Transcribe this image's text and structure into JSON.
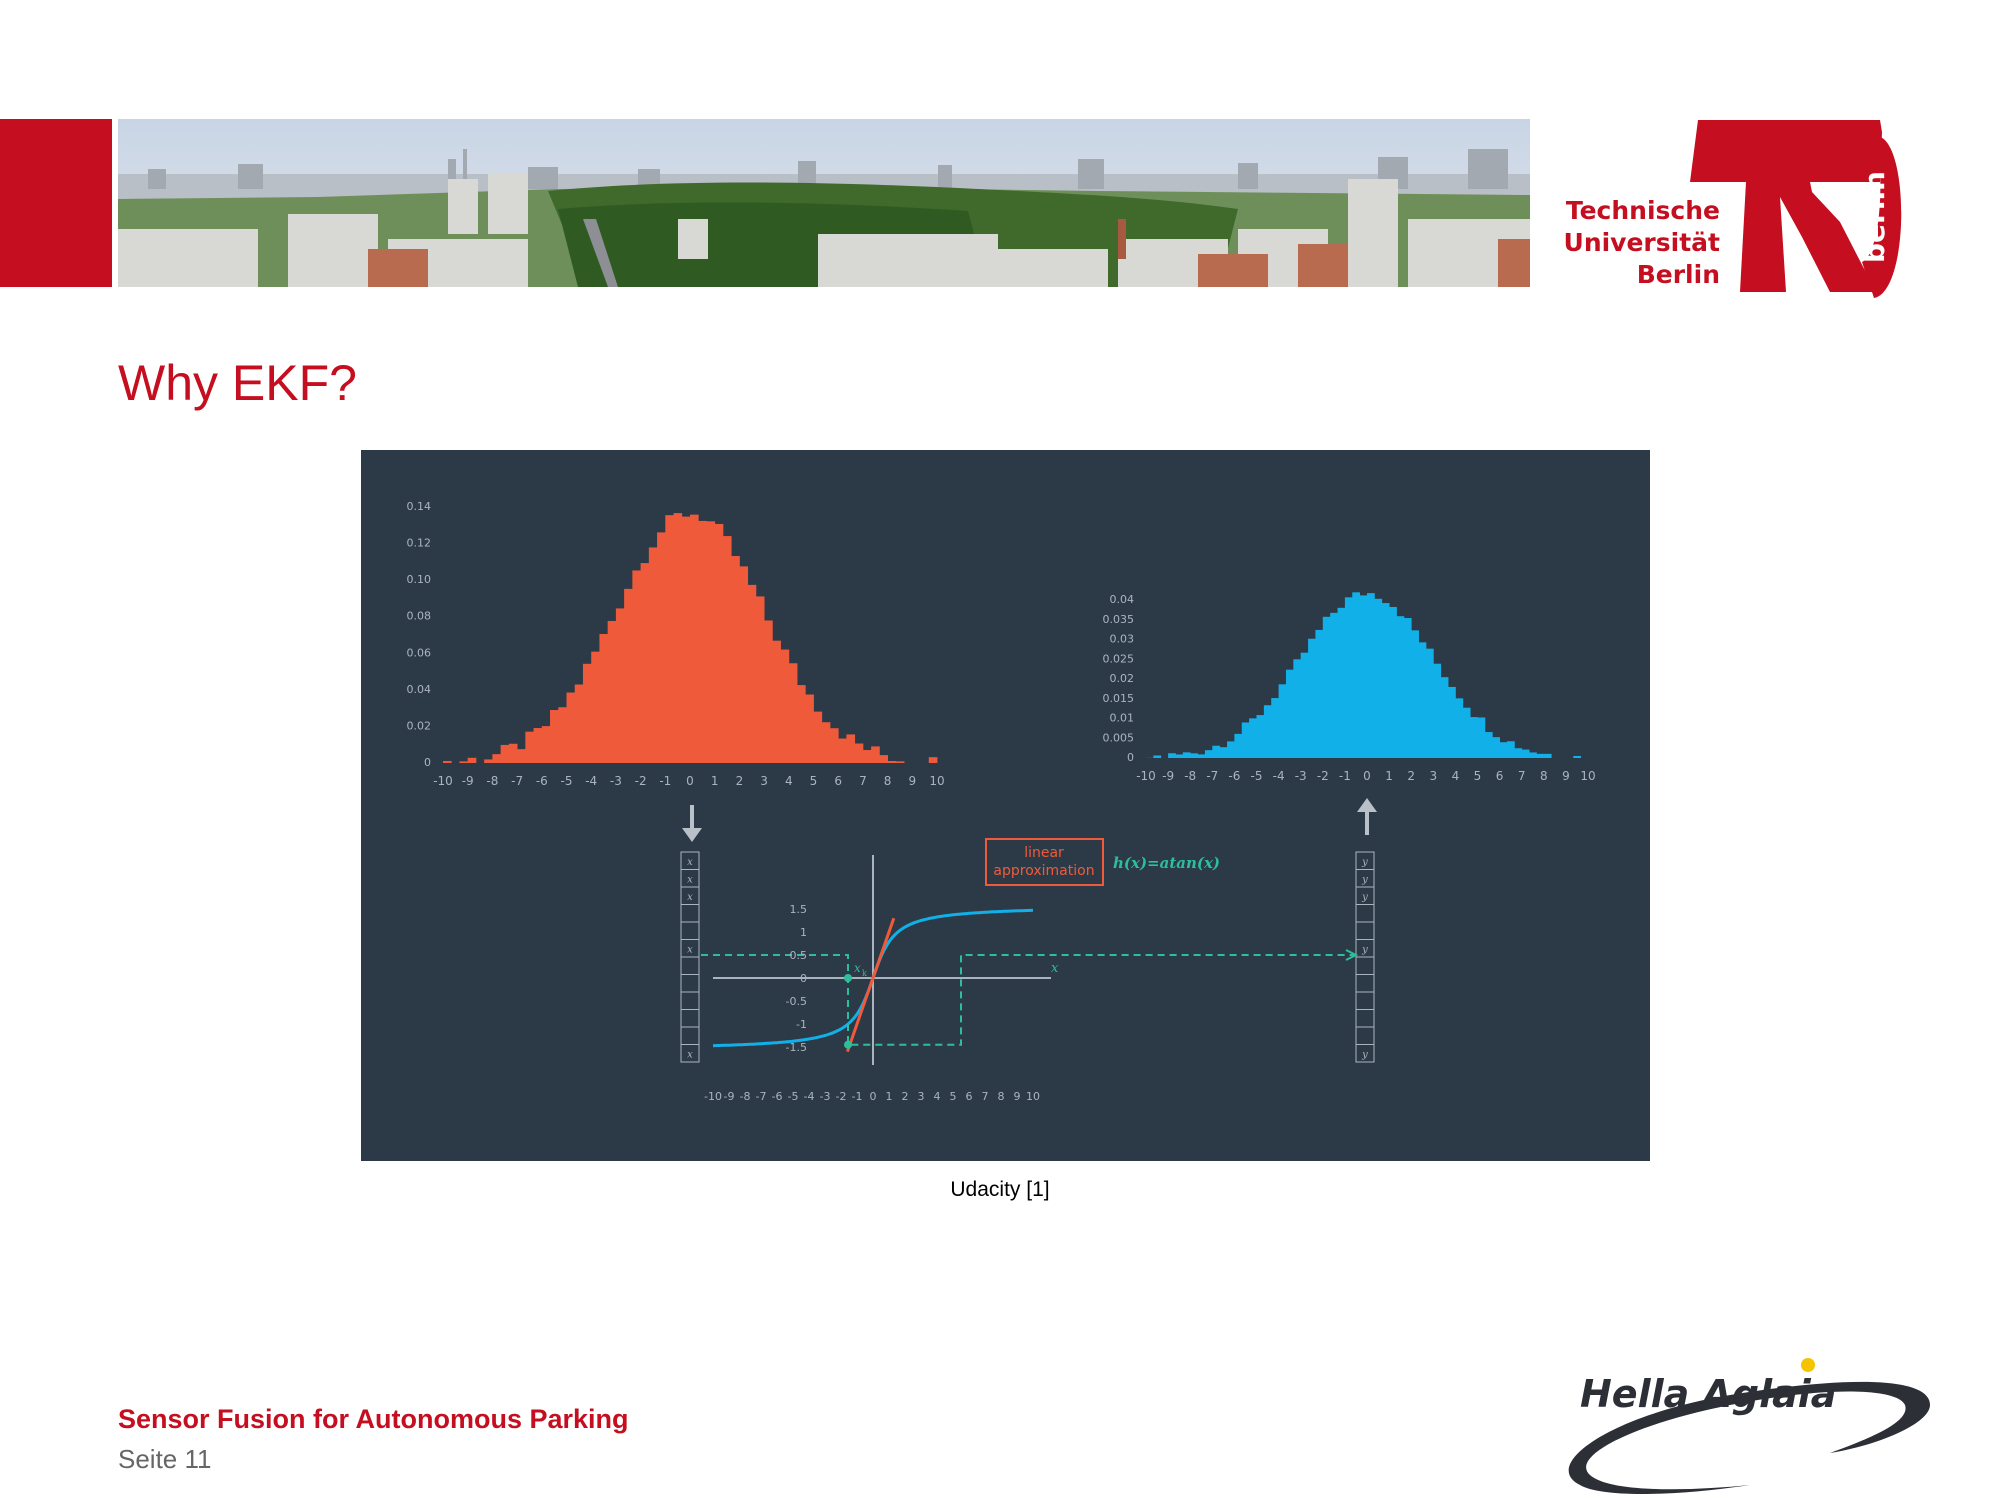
{
  "colors": {
    "brand_red": "#c50e1f",
    "figure_bg": "#2c3a47",
    "orange": "#ef5a3b",
    "blue": "#12b0e8",
    "teal": "#2dbf9b",
    "axis": "#aab4bf"
  },
  "header": {
    "tu_name_lines": [
      "Technische",
      "Universität",
      "Berlin"
    ],
    "tu_side": "berlin"
  },
  "page": {
    "title": "Why EKF?"
  },
  "figure": {
    "caption": "Udacity [1]",
    "left_hist": {
      "y_ticks": [
        "0.14",
        "0.12",
        "0.10",
        "0.08",
        "0.06",
        "0.04",
        "0.02",
        "0"
      ]
    },
    "right_hist": {
      "y_ticks": [
        "0.04",
        "0.035",
        "0.03",
        "0.025",
        "0.02",
        "0.015",
        "0.01",
        "0.005",
        "0"
      ]
    },
    "x_ticks": [
      "-10",
      "-9",
      "-8",
      "-7",
      "-6",
      "-5",
      "-4",
      "-3",
      "-2",
      "-1",
      "0",
      "1",
      "2",
      "3",
      "4",
      "5",
      "6",
      "7",
      "8",
      "9",
      "10"
    ],
    "plot": {
      "y_ticks": [
        "1.5",
        "1",
        "0.5",
        "0",
        "-0.5",
        "-1",
        "-1.5"
      ],
      "box_label_1": "linear",
      "box_label_2": "approximation",
      "func_label": "h(x)=atan(x)",
      "x_axis_label": "x",
      "point_label": "x",
      "point_sub": "k"
    },
    "vec_x": "x",
    "vec_y": "y"
  },
  "footer": {
    "course": "Sensor Fusion for Autonomous Parking",
    "page": "Seite 11",
    "partner": "Hella Aglaia"
  }
}
